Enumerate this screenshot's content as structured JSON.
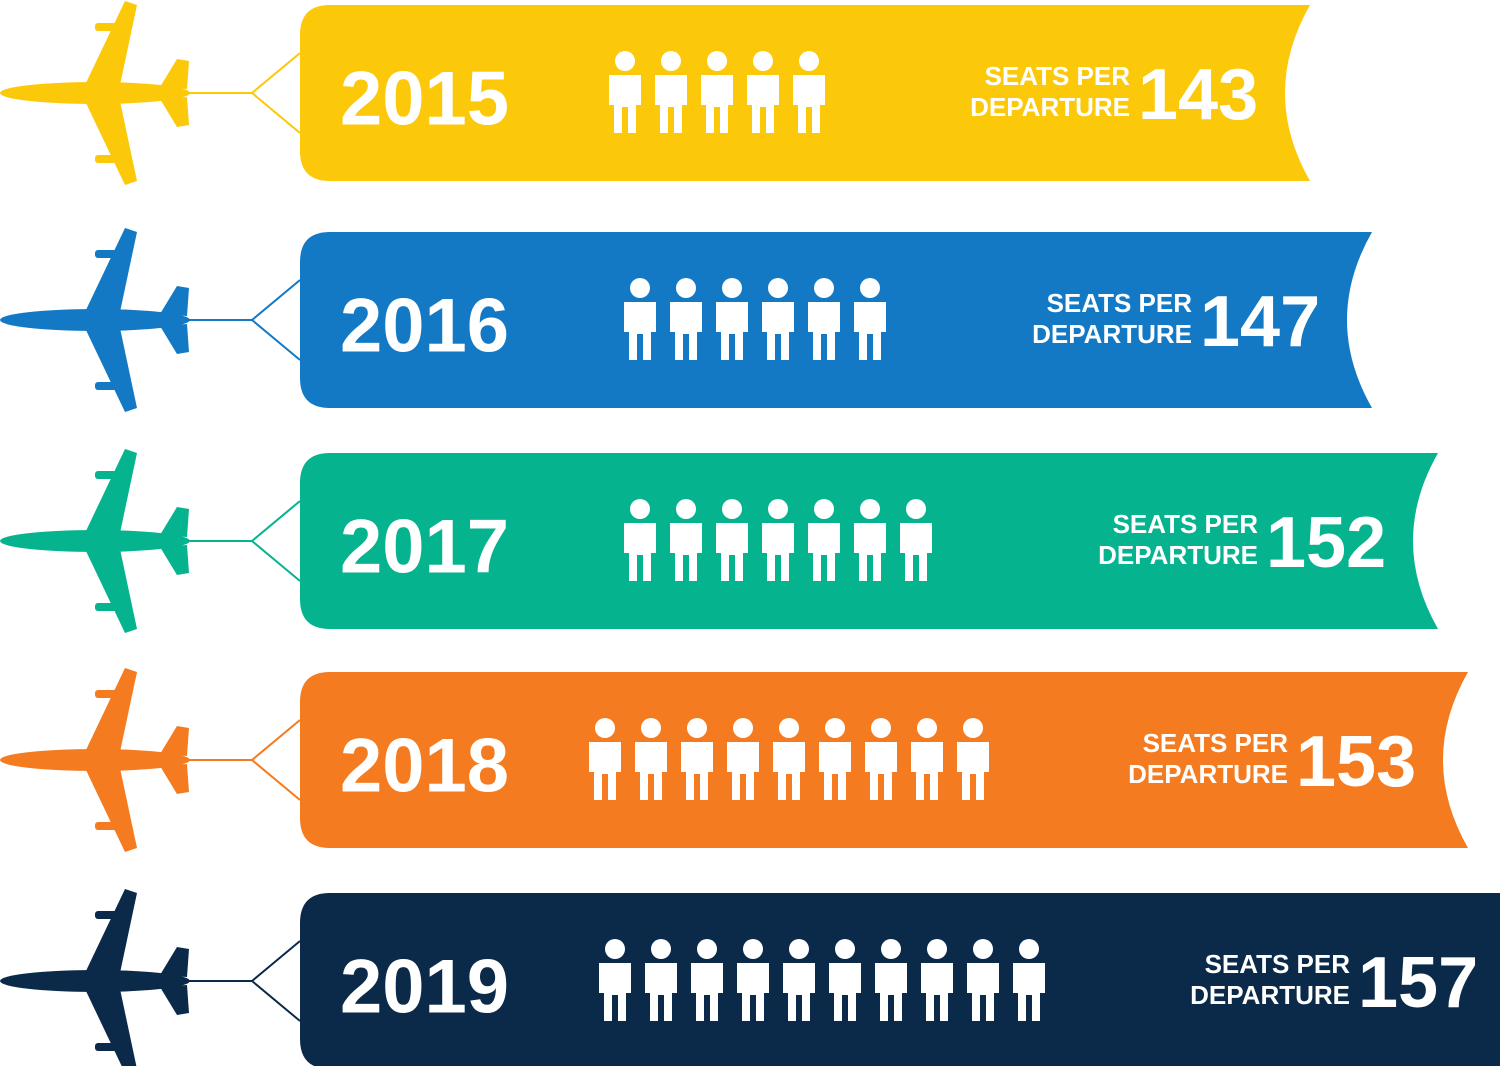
{
  "label_lines": [
    "SEATS PER",
    "DEPARTURE"
  ],
  "rows": [
    {
      "year": "2015",
      "color": "#fcc80a",
      "people": 5,
      "value": 143
    },
    {
      "year": "2016",
      "color": "#1479c4",
      "people": 6,
      "value": 147
    },
    {
      "year": "2017",
      "color": "#05b38e",
      "people": 7,
      "value": 152
    },
    {
      "year": "2018",
      "color": "#f47b20",
      "people": 9,
      "value": 153
    },
    {
      "year": "2019",
      "color": "#0b2a4a",
      "people": 10,
      "value": 157
    }
  ]
}
